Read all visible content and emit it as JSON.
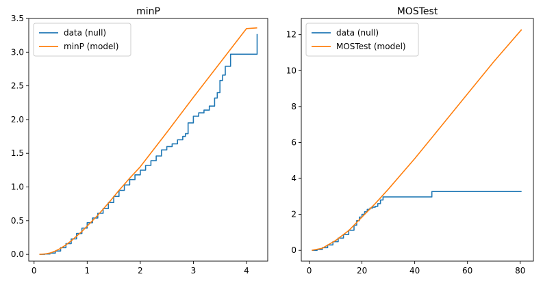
{
  "chart_data": [
    {
      "type": "line",
      "title": "minP",
      "xlabel": "",
      "ylabel": "",
      "xlim": [
        -0.1,
        4.4
      ],
      "ylim": [
        -0.1,
        3.5
      ],
      "xticks": [
        0,
        1,
        2,
        3,
        4
      ],
      "yticks": [
        0.0,
        0.5,
        1.0,
        1.5,
        2.0,
        2.5,
        3.0,
        3.5
      ],
      "xtick_labels": [
        "0",
        "1",
        "2",
        "3",
        "4"
      ],
      "ytick_labels": [
        "0.0",
        "0.5",
        "1.0",
        "1.5",
        "2.0",
        "2.5",
        "3.0",
        "3.5"
      ],
      "grid": false,
      "legend_position": "top-left",
      "series": [
        {
          "name": "data (null)",
          "color": "#1f77b4",
          "x": [
            0.1,
            0.2,
            0.3,
            0.4,
            0.5,
            0.6,
            0.7,
            0.8,
            0.9,
            1.0,
            1.1,
            1.2,
            1.3,
            1.4,
            1.5,
            1.6,
            1.7,
            1.8,
            1.9,
            2.0,
            2.1,
            2.2,
            2.3,
            2.4,
            2.5,
            2.6,
            2.7,
            2.8,
            2.85,
            2.9,
            3.0,
            3.1,
            3.2,
            3.3,
            3.4,
            3.45,
            3.5,
            3.55,
            3.6,
            3.65,
            3.7,
            3.8,
            3.9,
            4.0,
            4.1,
            4.15,
            4.2
          ],
          "y": [
            0.0,
            0.005,
            0.02,
            0.05,
            0.1,
            0.16,
            0.23,
            0.31,
            0.39,
            0.47,
            0.54,
            0.61,
            0.68,
            0.77,
            0.86,
            0.95,
            1.03,
            1.11,
            1.18,
            1.25,
            1.32,
            1.39,
            1.46,
            1.55,
            1.6,
            1.64,
            1.7,
            1.75,
            1.79,
            1.95,
            2.05,
            2.1,
            2.14,
            2.2,
            2.32,
            2.4,
            2.58,
            2.66,
            2.79,
            2.79,
            2.97,
            2.97,
            2.97,
            2.97,
            2.97,
            2.97,
            3.27
          ]
        },
        {
          "name": "minP (model)",
          "color": "#ff7f0e",
          "x": [
            0.1,
            0.2,
            0.3,
            0.4,
            0.5,
            0.6,
            0.7,
            0.8,
            0.9,
            1.0,
            1.2,
            1.4,
            1.6,
            1.8,
            2.0,
            2.5,
            3.0,
            3.5,
            4.0,
            4.2
          ],
          "y": [
            0.0,
            0.005,
            0.02,
            0.05,
            0.09,
            0.14,
            0.2,
            0.27,
            0.34,
            0.42,
            0.58,
            0.76,
            0.95,
            1.13,
            1.3,
            1.81,
            2.33,
            2.84,
            3.35,
            3.36
          ]
        }
      ]
    },
    {
      "type": "line",
      "title": "MOSTest",
      "xlabel": "",
      "ylabel": "",
      "xlim": [
        -3,
        85
      ],
      "ylim": [
        -0.6,
        12.9
      ],
      "xticks": [
        0,
        20,
        40,
        60,
        80
      ],
      "yticks": [
        0,
        2,
        4,
        6,
        8,
        10,
        12
      ],
      "xtick_labels": [
        "0",
        "20",
        "40",
        "60",
        "80"
      ],
      "ytick_labels": [
        "0",
        "2",
        "4",
        "6",
        "8",
        "10",
        "12"
      ],
      "grid": false,
      "legend_position": "top-left",
      "series": [
        {
          "name": "data (null)",
          "color": "#1f77b4",
          "x": [
            1,
            3,
            5,
            7,
            9,
            11,
            13,
            15,
            17,
            18,
            19,
            20,
            21,
            22,
            23,
            24,
            25,
            26,
            27,
            28,
            30,
            35,
            40,
            46,
            46.5,
            50,
            60,
            70,
            80.5
          ],
          "y": [
            0.0,
            0.05,
            0.15,
            0.3,
            0.48,
            0.68,
            0.88,
            1.12,
            1.4,
            1.65,
            1.85,
            2.0,
            2.15,
            2.28,
            2.35,
            2.4,
            2.45,
            2.6,
            2.8,
            2.97,
            2.97,
            2.97,
            2.97,
            2.97,
            3.27,
            3.27,
            3.27,
            3.27,
            3.27
          ]
        },
        {
          "name": "MOSTest (model)",
          "color": "#ff7f0e",
          "x": [
            1,
            5,
            10,
            15,
            20,
            25,
            30,
            40,
            50,
            60,
            70,
            80.5
          ],
          "y": [
            0.0,
            0.12,
            0.55,
            1.1,
            1.85,
            2.6,
            3.4,
            5.1,
            6.9,
            8.7,
            10.5,
            12.28
          ]
        }
      ]
    }
  ]
}
